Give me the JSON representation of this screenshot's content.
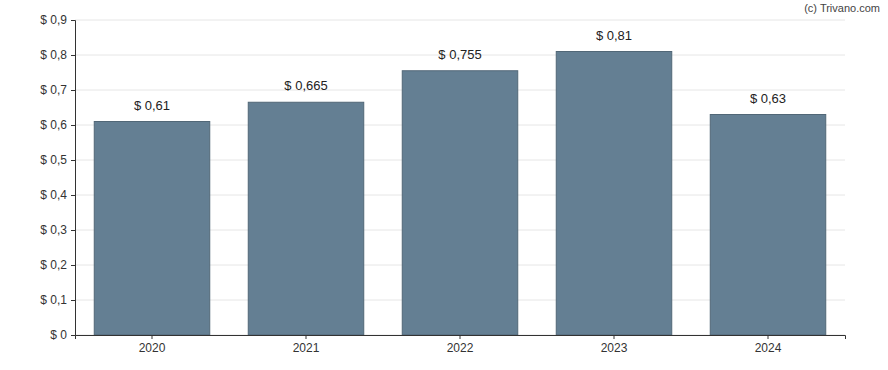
{
  "chart_data": {
    "type": "bar",
    "categories": [
      "2020",
      "2021",
      "2022",
      "2023",
      "2024"
    ],
    "values": [
      0.61,
      0.665,
      0.755,
      0.81,
      0.63
    ],
    "value_labels": [
      "$ 0,61",
      "$ 0,665",
      "$ 0,755",
      "$ 0,81",
      "$ 0,63"
    ],
    "data_labels": true,
    "color": "#647f93",
    "ylim": [
      0,
      0.9
    ],
    "yticks": [
      {
        "value": 0,
        "label": "$ 0"
      },
      {
        "value": 0.1,
        "label": "$ 0,1"
      },
      {
        "value": 0.2,
        "label": "$ 0,2"
      },
      {
        "value": 0.3,
        "label": "$ 0,3"
      },
      {
        "value": 0.4,
        "label": "$ 0,4"
      },
      {
        "value": 0.5,
        "label": "$ 0,5"
      },
      {
        "value": 0.6,
        "label": "$ 0,6"
      },
      {
        "value": 0.7,
        "label": "$ 0,7"
      },
      {
        "value": 0.8,
        "label": "$ 0,8"
      },
      {
        "value": 0.9,
        "label": "$ 0,9"
      }
    ],
    "grid": true,
    "annotations": [
      "(c) Trivano.com"
    ]
  }
}
